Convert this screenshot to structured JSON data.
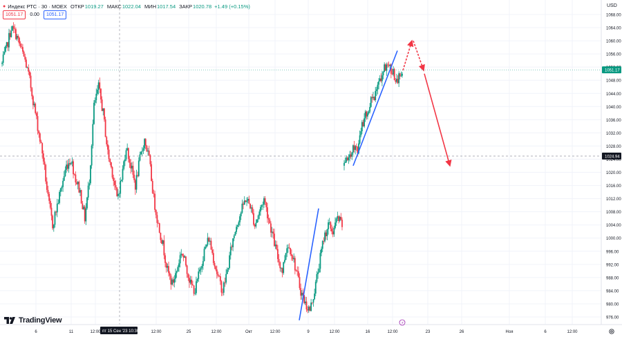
{
  "header": {
    "symbol": "Индекс РТС · 30 · MOEX",
    "ohlc": [
      {
        "key": "ОТКР",
        "value": "1019.27"
      },
      {
        "key": "МАКС",
        "value": "1022.04"
      },
      {
        "key": "МИН",
        "value": "1017.54"
      },
      {
        "key": "ЗАКР",
        "value": "1020.78"
      }
    ],
    "change": "+1.49 (+0.15%)",
    "price_sell": "1051.17",
    "spread": "0.00",
    "price_buy": "1051.17"
  },
  "currency": "USD",
  "branding": "TradingView",
  "colors": {
    "up": "#089981",
    "down": "#f23645",
    "blue_line": "#2962ff",
    "red_arrow": "#f23645"
  },
  "chart_data": {
    "type": "candlestick",
    "y_range": [
      974,
      1070
    ],
    "y_ticks": [
      "976.00",
      "980.00",
      "984.00",
      "988.00",
      "992.00",
      "996.00",
      "1000.00",
      "1004.00",
      "1008.00",
      "1012.00",
      "1016.00",
      "1020.00",
      "1024.00",
      "1028.00",
      "1032.00",
      "1036.00",
      "1040.00",
      "1044.00",
      "1048.00",
      "1052.00",
      "1056.00",
      "1060.00",
      "1064.00",
      "1068.00"
    ],
    "x_ticks": [
      "6",
      "11",
      "12:00",
      "12:00",
      "25",
      "12:00",
      "Окт",
      "12:00",
      "9",
      "12:00",
      "16",
      "12:00",
      "23",
      "26",
      "Ноя",
      "6",
      "12:00"
    ],
    "crosshair": {
      "date_label": "пт 15 Сен '23",
      "time_label": "10:30",
      "price_label": "1024.94"
    },
    "last_price_label": "1051.17",
    "series": [
      {
        "segment": 1,
        "path": [
          1053,
          1058,
          1064,
          1062,
          1058,
          1054,
          1048,
          1040,
          1032,
          1024,
          1012,
          1004,
          1010,
          1016,
          1022,
          1024,
          1018,
          1014,
          1006,
          1018,
          1040,
          1046,
          1038,
          1026,
          1020,
          1012,
          1018,
          1028,
          1022,
          1016,
          1024,
          1030,
          1024,
          1012,
          1004,
          998,
          990,
          986,
          990,
          996,
          992,
          986,
          984,
          990,
          996,
          1000,
          994,
          988,
          984,
          990,
          998,
          1004,
          1008,
          1012,
          1010,
          1004,
          1008,
          1012,
          1006,
          1000,
          994,
          990,
          998,
          996,
          990,
          984,
          980,
          978,
          984,
          992,
          1000,
          1004,
          1002,
          1006,
          1004
        ]
      },
      {
        "segment": 2,
        "path": [
          1022,
          1024,
          1028,
          1026,
          1034,
          1038,
          1042,
          1044,
          1048,
          1052,
          1053,
          1050,
          1048,
          1051
        ]
      }
    ],
    "drawings": [
      {
        "type": "trend-line",
        "color": "blue",
        "from": [
          "9",
          975
        ],
        "to": [
          "12:00",
          1009
        ]
      },
      {
        "type": "trend-line",
        "color": "blue",
        "from": [
          "16",
          1022
        ],
        "to": [
          "12:00",
          1057
        ]
      },
      {
        "type": "dashed-arrow",
        "color": "red",
        "from": [
          "12:00",
          1051
        ],
        "to": [
          "12:00",
          1060
        ]
      },
      {
        "type": "dashed-arrow",
        "color": "red",
        "from": [
          "12:00",
          1060
        ],
        "to": [
          "23",
          1051
        ]
      },
      {
        "type": "arrow",
        "color": "red",
        "from": [
          "23",
          1050
        ],
        "to": [
          "26",
          1022
        ]
      }
    ]
  }
}
